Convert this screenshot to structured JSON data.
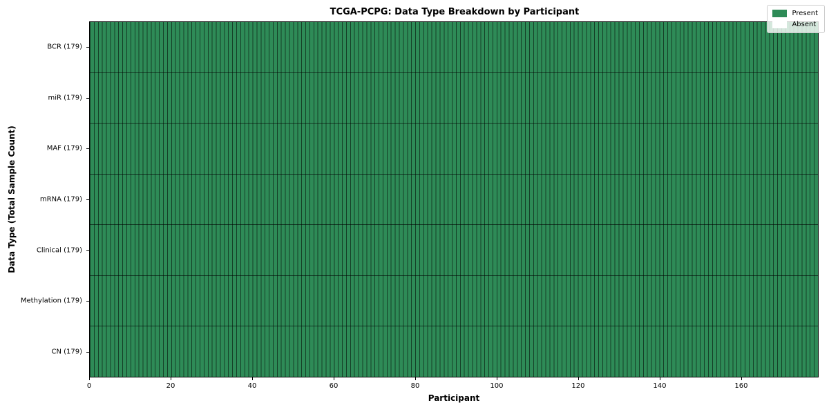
{
  "chart_data": {
    "type": "heatmap",
    "title": "TCGA-PCPG: Data Type Breakdown by Participant",
    "xlabel": "Participant",
    "ylabel": "Data Type (Total Sample Count)",
    "x_ticks": [
      0,
      20,
      40,
      60,
      80,
      100,
      120,
      140,
      160
    ],
    "x_range": [
      0,
      179
    ],
    "n_participants": 179,
    "rows": [
      {
        "label": "BCR (179)",
        "data_type": "BCR",
        "total_sample_count": 179,
        "present_count": 179,
        "absent_count": 0
      },
      {
        "label": "miR (179)",
        "data_type": "miR",
        "total_sample_count": 179,
        "present_count": 179,
        "absent_count": 0
      },
      {
        "label": "MAF (179)",
        "data_type": "MAF",
        "total_sample_count": 179,
        "present_count": 179,
        "absent_count": 0
      },
      {
        "label": "mRNA (179)",
        "data_type": "mRNA",
        "total_sample_count": 179,
        "present_count": 179,
        "absent_count": 0
      },
      {
        "label": "Clinical (179)",
        "data_type": "Clinical",
        "total_sample_count": 179,
        "present_count": 179,
        "absent_count": 0
      },
      {
        "label": "Methylation (179)",
        "data_type": "Methylation",
        "total_sample_count": 179,
        "present_count": 179,
        "absent_count": 0
      },
      {
        "label": "CN (179)",
        "data_type": "CN",
        "total_sample_count": 179,
        "present_count": 179,
        "absent_count": 0
      }
    ],
    "legend": [
      {
        "label": "Present",
        "color": "#2e8b57"
      },
      {
        "label": "Absent",
        "color": "#ffffff"
      }
    ],
    "legend_position": "upper right",
    "grid": false,
    "colors": {
      "present": "#2e8b57",
      "absent": "#ffffff",
      "bar_edge": "rgba(0,0,0,0.55)",
      "row_separator": "rgba(0,0,0,0.6)",
      "background": "#ffffff"
    }
  }
}
